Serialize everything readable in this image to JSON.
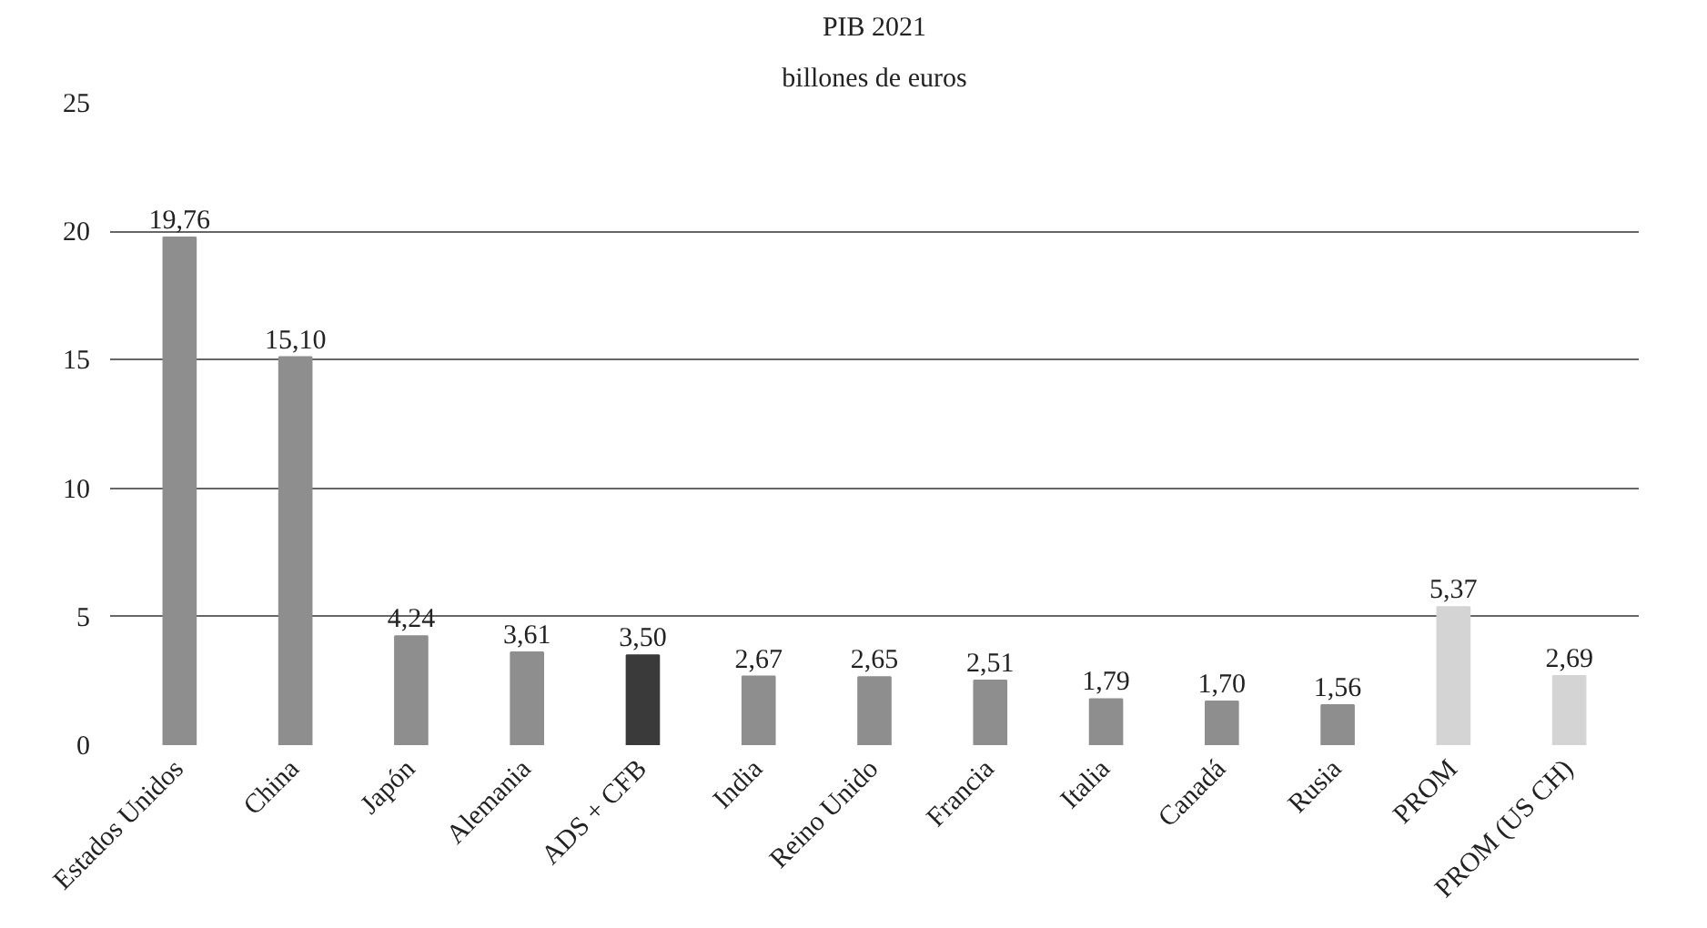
{
  "chart_data": {
    "type": "bar",
    "title": "PIB 2021",
    "subtitle": "billones de euros",
    "categories": [
      "Estados Unidos",
      "China",
      "Japón",
      "Alemania",
      "ADS + CFB",
      "India",
      "Reino Unido",
      "Francia",
      "Italia",
      "Canadá",
      "Rusia",
      "PROM",
      "PROM (US CH)"
    ],
    "values": [
      19.76,
      15.1,
      4.24,
      3.61,
      3.5,
      2.67,
      2.65,
      2.51,
      1.79,
      1.7,
      1.56,
      5.37,
      2.69
    ],
    "colors": [
      "#8e8e8e",
      "#8e8e8e",
      "#8e8e8e",
      "#8e8e8e",
      "#3a3a3a",
      "#8e8e8e",
      "#8e8e8e",
      "#8e8e8e",
      "#8e8e8e",
      "#8e8e8e",
      "#8e8e8e",
      "#d4d4d4",
      "#d4d4d4"
    ],
    "value_labels": [
      "19,76",
      "15,10",
      "4,24",
      "3,61",
      "3,50",
      "2,67",
      "2,65",
      "2,51",
      "1,79",
      "1,70",
      "1,56",
      "5,37",
      "2,69"
    ],
    "ylim": [
      0,
      25
    ],
    "yticks": [
      0,
      5,
      10,
      15,
      20,
      25
    ],
    "grid": "y"
  }
}
